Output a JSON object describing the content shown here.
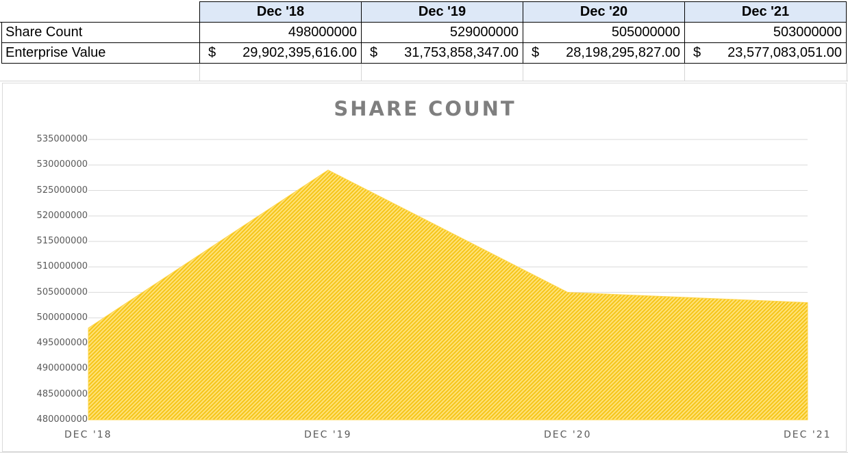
{
  "table": {
    "headers": [
      "Dec '18",
      "Dec '19",
      "Dec '20",
      "Dec '21"
    ],
    "rows": [
      {
        "label": "Share Count",
        "cells": [
          "498000000",
          "529000000",
          "505000000",
          "503000000"
        ]
      },
      {
        "label": "Enterprise Value",
        "currency_symbol": "$",
        "cells": [
          "29,902,395,616.00",
          "31,753,858,347.00",
          "28,198,295,827.00",
          "23,577,083,051.00"
        ]
      }
    ]
  },
  "chart_data": {
    "type": "area",
    "title": "SHARE COUNT",
    "categories": [
      "DEC '18",
      "DEC '19",
      "DEC '20",
      "DEC '21"
    ],
    "series": [
      {
        "values": [
          498000000,
          529000000,
          505000000,
          503000000
        ],
        "color": "#ffd54a"
      }
    ],
    "yticks": [
      "535000000",
      "530000000",
      "525000000",
      "520000000",
      "515000000",
      "510000000",
      "505000000",
      "500000000",
      "495000000",
      "490000000",
      "485000000",
      "480000000"
    ],
    "ylim": [
      480000000,
      535000000
    ],
    "grid": true,
    "legend": "none",
    "fill_pattern": "diagonal-hatch"
  }
}
